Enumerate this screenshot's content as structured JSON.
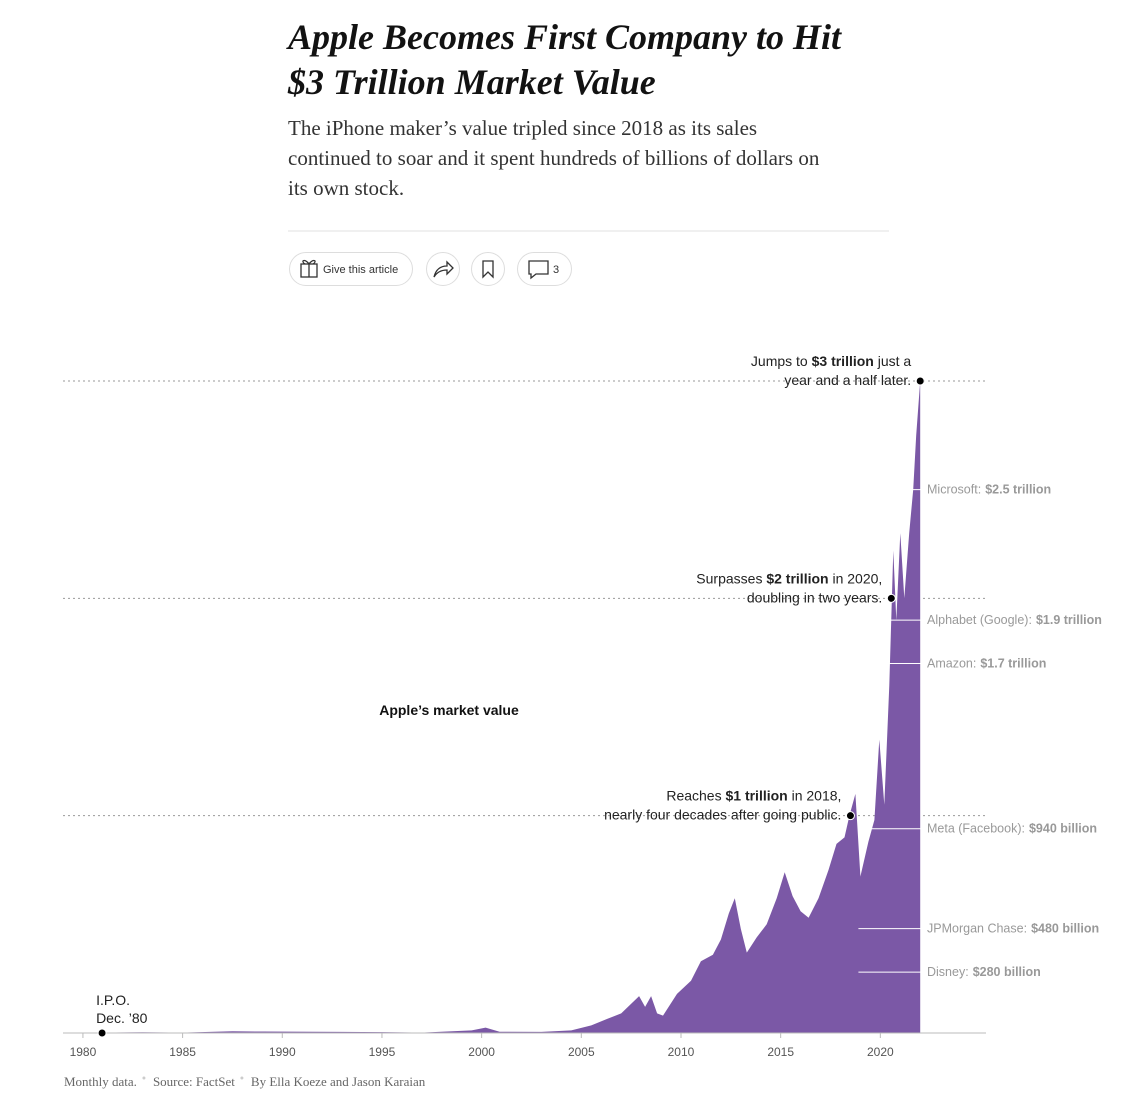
{
  "header": {
    "title_lines": [
      "Apple Becomes First Company to Hit",
      "$3 Trillion Market Value"
    ],
    "subtitle_lines": [
      "The iPhone maker’s value tripled since 2018 as its sales",
      "continued to soar and it spent hundreds of billions of dollars on",
      "its own stock."
    ],
    "gift_button": "Give this article",
    "comment_count": 3
  },
  "chart_data": {
    "type": "area",
    "title": "Apple’s market value",
    "color": "#7b58a6",
    "xlim": [
      1979,
      2025.3
    ],
    "xticks": [
      1980,
      1985,
      1990,
      1995,
      2000,
      2005,
      2010,
      2015,
      2020
    ],
    "ylim": [
      0,
      3
    ],
    "reference_lines": [
      1,
      2,
      3
    ],
    "x": [
      1980.96,
      1983,
      1985,
      1987.5,
      1989,
      1991.5,
      1993,
      1995,
      1997,
      1999.5,
      2000.2,
      2000.9,
      2003,
      2004.5,
      2005.5,
      2006.3,
      2007,
      2007.9,
      2008.2,
      2008.5,
      2008.8,
      2009.1,
      2009.8,
      2010.5,
      2011,
      2011.6,
      2012.0,
      2012.4,
      2012.7,
      2013.0,
      2013.3,
      2013.8,
      2014.3,
      2014.8,
      2015.2,
      2015.6,
      2016.0,
      2016.4,
      2016.9,
      2017.4,
      2017.8,
      2018.2,
      2018.45,
      2018.75,
      2019.0,
      2019.4,
      2019.7,
      2019.95,
      2020.2,
      2020.45,
      2020.65,
      2020.8,
      2021.0,
      2021.2,
      2021.45,
      2021.65,
      2021.8,
      2022.0
    ],
    "series": [
      {
        "name": "Apple",
        "values": [
          0.0018,
          0.003,
          0.002,
          0.008,
          0.007,
          0.006,
          0.005,
          0.004,
          0.002,
          0.012,
          0.025,
          0.006,
          0.005,
          0.012,
          0.035,
          0.065,
          0.09,
          0.17,
          0.12,
          0.17,
          0.09,
          0.08,
          0.18,
          0.24,
          0.33,
          0.36,
          0.43,
          0.55,
          0.62,
          0.48,
          0.37,
          0.44,
          0.5,
          0.62,
          0.74,
          0.63,
          0.56,
          0.53,
          0.62,
          0.75,
          0.87,
          0.9,
          1.0,
          1.1,
          0.72,
          0.88,
          0.98,
          1.35,
          1.05,
          1.6,
          2.22,
          1.9,
          2.3,
          2.0,
          2.3,
          2.5,
          2.75,
          3.0
        ]
      }
    ],
    "annotations": [
      {
        "x": 2022.0,
        "value": 3,
        "lines": [
          [
            {
              "text": "Jumps to ",
              "bold": false
            },
            {
              "text": "$3 trillion",
              "bold": true
            },
            {
              "text": " just a",
              "bold": false
            }
          ],
          [
            {
              "text": "year and a half later.",
              "bold": false
            }
          ]
        ]
      },
      {
        "x": 2020.55,
        "value": 2,
        "lines": [
          [
            {
              "text": "Surpasses ",
              "bold": false
            },
            {
              "text": "$2 trillion",
              "bold": true
            },
            {
              "text": " in 2020,",
              "bold": false
            }
          ],
          [
            {
              "text": "doubling in two years.",
              "bold": false
            }
          ]
        ]
      },
      {
        "x": 2018.5,
        "value": 1,
        "lines": [
          [
            {
              "text": "Reaches ",
              "bold": false
            },
            {
              "text": "$1 trillion",
              "bold": true
            },
            {
              "text": " in 2018,",
              "bold": false
            }
          ],
          [
            {
              "text": "nearly four decades after going public.",
              "bold": false
            }
          ]
        ]
      },
      {
        "x": 1980.96,
        "value": 0.0018,
        "lines": [
          [
            {
              "text": "I.P.O.",
              "bold": false
            }
          ],
          [
            {
              "text": "Dec. ’80",
              "bold": false
            }
          ]
        ]
      }
    ],
    "comparisons": [
      {
        "name": "Microsoft:",
        "value": 2.5,
        "value_label": "$2.5 trillion"
      },
      {
        "name": "Alphabet (Google):",
        "value": 1.9,
        "value_label": "$1.9 trillion"
      },
      {
        "name": "Amazon:",
        "value": 1.7,
        "value_label": "$1.7 trillion"
      },
      {
        "name": "Meta (Facebook):",
        "value": 0.94,
        "value_label": "$940 billion"
      },
      {
        "name": "JPMorgan Chase:",
        "value": 0.48,
        "value_label": "$480 billion"
      },
      {
        "name": "Disney:",
        "value": 0.28,
        "value_label": "$280 billion"
      }
    ],
    "footer": [
      "Monthly data.",
      "Source: FactSet",
      "By Ella Koeze and Jason Karaian"
    ]
  }
}
